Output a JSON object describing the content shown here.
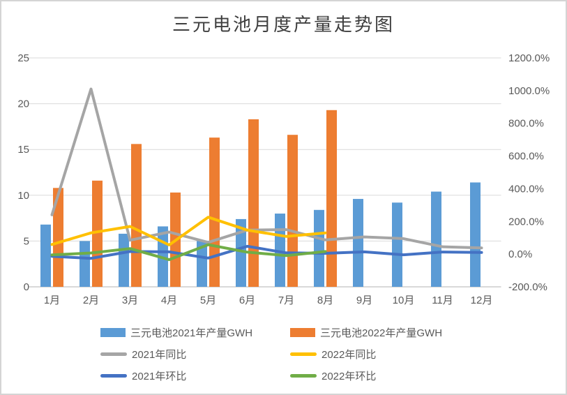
{
  "window": {
    "background": "#ffffff",
    "border_color": "#d4d4d4"
  },
  "chart_data": {
    "type": "bar",
    "subtype": "combo-bar-line-dual-axis",
    "title": "三元电池月度产量走势图",
    "categories": [
      "1月",
      "2月",
      "3月",
      "4月",
      "5月",
      "6月",
      "7月",
      "8月",
      "9月",
      "10月",
      "11月",
      "12月"
    ],
    "left_axis": {
      "min": 0,
      "max": 25,
      "tick_step": 5,
      "ticks_top_to_bottom": [
        "25",
        "20",
        "15",
        "10",
        "5",
        "0"
      ]
    },
    "right_axis": {
      "min": -200,
      "max": 1200,
      "tick_step": 200,
      "unit": "%",
      "ticks_top_to_bottom": [
        "1200.0%",
        "1000.0%",
        "800.0%",
        "600.0%",
        "400.0%",
        "200.0%",
        "0.0%",
        "-200.0%"
      ]
    },
    "bar_series": [
      {
        "name": "三元电池2021年产量GWH",
        "axis": "left",
        "color": "#5B9BD5",
        "values": [
          6.8,
          5.0,
          5.8,
          6.6,
          5.0,
          7.4,
          8.0,
          8.4,
          9.6,
          9.2,
          10.4,
          11.4
        ]
      },
      {
        "name": "三元电池2022年产量GWH",
        "axis": "left",
        "color": "#ED7D31",
        "values": [
          10.8,
          11.6,
          15.6,
          10.3,
          16.3,
          18.3,
          16.6,
          19.3,
          null,
          null,
          null,
          null
        ]
      }
    ],
    "line_series": [
      {
        "name": "2021年同比",
        "axis": "right",
        "color": "#A5A5A5",
        "values": [
          240,
          1010,
          85,
          135,
          72,
          147,
          150,
          87,
          105,
          95,
          45,
          38
        ]
      },
      {
        "name": "2022年同比",
        "axis": "right",
        "color": "#FFC000",
        "values": [
          59,
          130,
          169,
          56,
          226,
          147,
          108,
          130,
          null,
          null,
          null,
          null
        ]
      },
      {
        "name": "2021年环比",
        "axis": "right",
        "color": "#4472C4",
        "values": [
          -13,
          -26,
          16,
          14,
          -24,
          48,
          8,
          5,
          14,
          -4,
          13,
          10
        ]
      },
      {
        "name": "2022年环比",
        "axis": "right",
        "color": "#70AD47",
        "values": [
          -5,
          7,
          34,
          -34,
          58,
          12,
          -9,
          16,
          null,
          null,
          null,
          null
        ]
      }
    ],
    "style": {
      "gridline_color": "#D9D9D9",
      "axis_line_color": "#D9D9D9",
      "axis_label_color": "#595959",
      "title_color": "#3f3f3f",
      "legend_position": "bottom"
    }
  },
  "legend": {
    "items": [
      {
        "label": "三元电池2021年产量GWH",
        "swatch": "bar",
        "color": "#5B9BD5"
      },
      {
        "label": "三元电池2022年产量GWH",
        "swatch": "bar",
        "color": "#ED7D31"
      },
      {
        "label": "2021年同比",
        "swatch": "line",
        "color": "#A5A5A5"
      },
      {
        "label": "2022年同比",
        "swatch": "line",
        "color": "#FFC000"
      },
      {
        "label": "2021年环比",
        "swatch": "line",
        "color": "#4472C4"
      },
      {
        "label": "2022年环比",
        "swatch": "line",
        "color": "#70AD47"
      }
    ]
  }
}
